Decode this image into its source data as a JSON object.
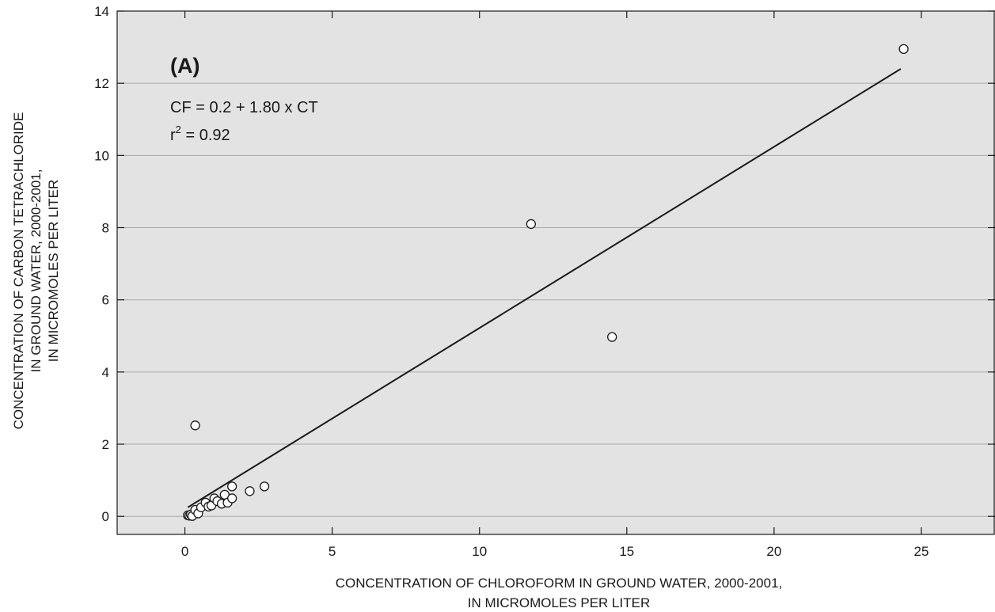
{
  "chart_data": {
    "type": "scatter",
    "panel_label": "(A)",
    "xlabel_line1": "CONCENTRATION OF CHLOROFORM IN GROUND WATER, 2000-2001,",
    "xlabel_line2": "IN MICROMOLES PER LITER",
    "ylabel_line1": "CONCENTRATION OF CARBON TETRACHLORIDE",
    "ylabel_line2": "IN GROUND WATER, 2000-2001,",
    "ylabel_line3": "IN MICROMOLES PER LITER",
    "equation": "CF = 0.2 + 1.80 x CT",
    "r2_prefix": "r",
    "r2_exp": "2",
    "r2_value": " = 0.92",
    "xlim": [
      -2.3,
      27.5
    ],
    "ylim": [
      -0.5,
      14
    ],
    "xticks": [
      0,
      5,
      10,
      15,
      20,
      25
    ],
    "xtick_labels": [
      "0",
      "5",
      "10",
      "15",
      "20",
      "25"
    ],
    "yticks": [
      0,
      2,
      4,
      6,
      8,
      10,
      12,
      14
    ],
    "ytick_labels": [
      "0",
      "2",
      "4",
      "6",
      "8",
      "10",
      "12",
      "14"
    ],
    "grid": "horizontal",
    "colors": {
      "background": "#e3e3e3",
      "grid": "#aaaaaa",
      "ink": "#1a1a1a",
      "marker_fill": "#ffffff"
    },
    "regression": {
      "intercept": 0.2,
      "slope": 0.502,
      "x_start": 0.1,
      "x_end": 24.3
    },
    "points": [
      {
        "x": 0.1,
        "y": 0.03
      },
      {
        "x": 0.15,
        "y": 0.02
      },
      {
        "x": 0.2,
        "y": 0.05
      },
      {
        "x": 0.25,
        "y": 0.01
      },
      {
        "x": 0.35,
        "y": 0.18
      },
      {
        "x": 0.45,
        "y": 0.08
      },
      {
        "x": 0.55,
        "y": 0.25
      },
      {
        "x": 0.7,
        "y": 0.38
      },
      {
        "x": 0.8,
        "y": 0.27
      },
      {
        "x": 0.9,
        "y": 0.3
      },
      {
        "x": 1.0,
        "y": 0.5
      },
      {
        "x": 1.1,
        "y": 0.42
      },
      {
        "x": 1.25,
        "y": 0.35
      },
      {
        "x": 1.35,
        "y": 0.6
      },
      {
        "x": 1.45,
        "y": 0.38
      },
      {
        "x": 1.6,
        "y": 0.5
      },
      {
        "x": 1.6,
        "y": 0.83
      },
      {
        "x": 2.2,
        "y": 0.7
      },
      {
        "x": 2.7,
        "y": 0.83
      },
      {
        "x": 0.35,
        "y": 2.52
      },
      {
        "x": 11.75,
        "y": 8.1
      },
      {
        "x": 14.5,
        "y": 4.97
      },
      {
        "x": 24.4,
        "y": 12.95
      }
    ]
  }
}
